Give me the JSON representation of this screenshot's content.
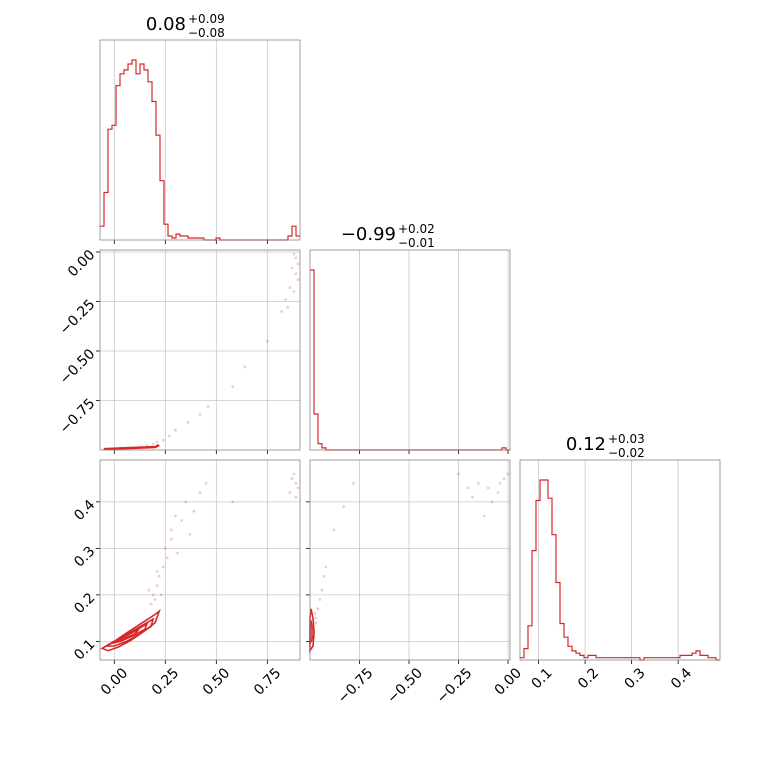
{
  "chart_data": {
    "type": "corner",
    "color": "#d62728",
    "grid": true,
    "parameters": [
      {
        "median": "0.08",
        "plus": "+0.09",
        "minus": "−0.08",
        "range": [
          -0.07,
          0.91
        ],
        "ticks": [
          0.0,
          0.25,
          0.5,
          0.75
        ],
        "tick_labels": [
          "0.00",
          "0.25",
          "0.50",
          "0.75"
        ]
      },
      {
        "median": "−0.99",
        "plus": "+0.02",
        "minus": "−0.01",
        "range": [
          -1.0,
          0.01
        ],
        "ticks": [
          -0.75,
          -0.5,
          -0.25,
          0.0
        ],
        "tick_labels": [
          "−0.75",
          "−0.50",
          "−0.25",
          "0.00"
        ]
      },
      {
        "median": "0.12",
        "plus": "+0.03",
        "minus": "−0.02",
        "range": [
          0.06,
          0.49
        ],
        "ticks": [
          0.1,
          0.2,
          0.3,
          0.4
        ],
        "tick_labels": [
          "0.1",
          "0.2",
          "0.3",
          "0.4"
        ]
      }
    ],
    "histograms": [
      {
        "param": 0,
        "bin_width": 0.0196,
        "counts": [
          0.07,
          0.24,
          0.56,
          0.58,
          0.78,
          0.84,
          0.86,
          0.89,
          0.91,
          0.84,
          0.89,
          0.86,
          0.8,
          0.7,
          0.53,
          0.3,
          0.08,
          0.02,
          0.01,
          0.03,
          0.02,
          0.02,
          0.01,
          0.01,
          0.01,
          0.01,
          0.0,
          0.0,
          0.0,
          0.01,
          0.0,
          0.0,
          0.0,
          0.0,
          0.0,
          0.0,
          0.0,
          0.0,
          0.0,
          0.0,
          0.0,
          0.0,
          0.0,
          0.0,
          0.0,
          0.0,
          0.0,
          0.02,
          0.07,
          0.02
        ]
      },
      {
        "param": 1,
        "bin_width": 0.0202,
        "counts": [
          0.85,
          0.17,
          0.03,
          0.01,
          0.0,
          0.0,
          0.0,
          0.0,
          0.0,
          0.0,
          0.0,
          0.0,
          0.0,
          0.0,
          0.0,
          0.0,
          0.0,
          0.0,
          0.0,
          0.0,
          0.0,
          0.0,
          0.0,
          0.0,
          0.0,
          0.0,
          0.0,
          0.0,
          0.0,
          0.0,
          0.0,
          0.0,
          0.0,
          0.0,
          0.0,
          0.0,
          0.0,
          0.0,
          0.0,
          0.0,
          0.0,
          0.0,
          0.0,
          0.0,
          0.0,
          0.0,
          0.0,
          0.0,
          0.01,
          0.0
        ]
      },
      {
        "param": 2,
        "bin_width": 0.0086,
        "counts": [
          0.01,
          0.05,
          0.15,
          0.48,
          0.7,
          0.79,
          0.79,
          0.71,
          0.55,
          0.34,
          0.16,
          0.1,
          0.06,
          0.04,
          0.03,
          0.02,
          0.01,
          0.02,
          0.02,
          0.01,
          0.01,
          0.01,
          0.01,
          0.01,
          0.01,
          0.01,
          0.01,
          0.01,
          0.01,
          0.01,
          0.0,
          0.01,
          0.01,
          0.01,
          0.01,
          0.01,
          0.01,
          0.01,
          0.01,
          0.01,
          0.02,
          0.02,
          0.02,
          0.03,
          0.04,
          0.02,
          0.02,
          0.01,
          0.01,
          0.0
        ]
      }
    ],
    "scatter_panels": [
      {
        "x_param": 0,
        "y_param": 1,
        "points": [
          [
            0.88,
            -0.01
          ],
          [
            0.89,
            -0.03
          ],
          [
            0.9,
            -0.06
          ],
          [
            0.87,
            -0.08
          ],
          [
            0.89,
            -0.11
          ],
          [
            0.9,
            -0.14
          ],
          [
            0.86,
            -0.18
          ],
          [
            0.88,
            -0.2
          ],
          [
            0.84,
            -0.24
          ],
          [
            0.85,
            -0.28
          ],
          [
            0.82,
            -0.3
          ],
          [
            0.75,
            -0.45
          ],
          [
            0.64,
            -0.58
          ],
          [
            0.58,
            -0.68
          ],
          [
            0.46,
            -0.78
          ],
          [
            0.42,
            -0.82
          ],
          [
            0.36,
            -0.86
          ],
          [
            0.3,
            -0.9
          ],
          [
            0.27,
            -0.93
          ],
          [
            0.24,
            -0.95
          ],
          [
            0.21,
            -0.96
          ],
          [
            0.19,
            -0.97
          ],
          [
            0.16,
            -0.98
          ],
          [
            0.13,
            -0.985
          ],
          [
            0.1,
            -0.99
          ],
          [
            0.06,
            -0.99
          ],
          [
            0.03,
            -0.99
          ],
          [
            0.0,
            -0.995
          ],
          [
            -0.03,
            -0.995
          ],
          [
            -0.05,
            -0.995
          ]
        ],
        "contours": []
      },
      {
        "x_param": 0,
        "y_param": 2,
        "points": [
          [
            0.88,
            0.46
          ],
          [
            0.89,
            0.44
          ],
          [
            0.9,
            0.43
          ],
          [
            0.87,
            0.45
          ],
          [
            0.86,
            0.42
          ],
          [
            0.89,
            0.41
          ],
          [
            0.58,
            0.4
          ],
          [
            0.42,
            0.42
          ],
          [
            0.35,
            0.4
          ],
          [
            0.3,
            0.37
          ],
          [
            0.28,
            0.34
          ],
          [
            0.25,
            0.3
          ],
          [
            0.24,
            0.26
          ],
          [
            0.22,
            0.24
          ],
          [
            0.21,
            0.22
          ],
          [
            0.23,
            0.2
          ],
          [
            0.2,
            0.19
          ],
          [
            0.18,
            0.18
          ],
          [
            0.26,
            0.28
          ],
          [
            0.33,
            0.36
          ],
          [
            0.37,
            0.33
          ],
          [
            0.31,
            0.29
          ],
          [
            0.28,
            0.32
          ],
          [
            0.21,
            0.25
          ],
          [
            0.19,
            0.2
          ],
          [
            0.17,
            0.21
          ],
          [
            0.39,
            0.38
          ],
          [
            0.45,
            0.44
          ]
        ],
        "contours": [
          [
            [
              -0.06,
              0.085
            ],
            [
              0.0,
              0.1
            ],
            [
              0.06,
              0.118
            ],
            [
              0.12,
              0.135
            ],
            [
              0.2,
              0.158
            ],
            [
              0.22,
              0.165
            ],
            [
              0.2,
              0.14
            ],
            [
              0.14,
              0.12
            ],
            [
              0.08,
              0.102
            ],
            [
              0.02,
              0.088
            ],
            [
              -0.03,
              0.08
            ]
          ],
          [
            [
              -0.04,
              0.09
            ],
            [
              0.02,
              0.105
            ],
            [
              0.08,
              0.12
            ],
            [
              0.14,
              0.135
            ],
            [
              0.19,
              0.148
            ],
            [
              0.18,
              0.132
            ],
            [
              0.12,
              0.115
            ],
            [
              0.06,
              0.1
            ],
            [
              0.0,
              0.09
            ]
          ],
          [
            [
              -0.02,
              0.095
            ],
            [
              0.04,
              0.108
            ],
            [
              0.1,
              0.122
            ],
            [
              0.16,
              0.138
            ],
            [
              0.15,
              0.126
            ],
            [
              0.09,
              0.112
            ],
            [
              0.03,
              0.1
            ]
          ],
          [
            [
              0.0,
              0.1
            ],
            [
              0.06,
              0.112
            ],
            [
              0.12,
              0.126
            ],
            [
              0.1,
              0.116
            ],
            [
              0.04,
              0.104
            ]
          ]
        ]
      },
      {
        "x_param": 1,
        "y_param": 2,
        "points": [
          [
            -0.99,
            0.1
          ],
          [
            -0.98,
            0.12
          ],
          [
            -0.97,
            0.14
          ],
          [
            -0.96,
            0.17
          ],
          [
            -0.95,
            0.19
          ],
          [
            -0.94,
            0.21
          ],
          [
            -0.93,
            0.24
          ],
          [
            -0.92,
            0.26
          ],
          [
            -0.88,
            0.34
          ],
          [
            -0.83,
            0.39
          ],
          [
            -0.78,
            0.44
          ],
          [
            -0.25,
            0.46
          ],
          [
            -0.15,
            0.44
          ],
          [
            -0.1,
            0.43
          ],
          [
            -0.05,
            0.42
          ],
          [
            -0.02,
            0.45
          ],
          [
            0.0,
            0.46
          ],
          [
            -0.2,
            0.43
          ],
          [
            -0.12,
            0.37
          ],
          [
            -0.08,
            0.4
          ],
          [
            -0.04,
            0.44
          ],
          [
            -0.18,
            0.41
          ],
          [
            -0.97,
            0.15
          ],
          [
            -0.98,
            0.11
          ],
          [
            -0.99,
            0.13
          ],
          [
            -0.985,
            0.09
          ],
          [
            -0.975,
            0.16
          ]
        ],
        "contours": [
          [
            [
              -1.0,
              0.08
            ],
            [
              -0.985,
              0.09
            ],
            [
              -0.98,
              0.12
            ],
            [
              -0.985,
              0.15
            ],
            [
              -0.995,
              0.17
            ],
            [
              -1.0,
              0.15
            ]
          ],
          [
            [
              -1.0,
              0.095
            ],
            [
              -0.99,
              0.105
            ],
            [
              -0.99,
              0.13
            ],
            [
              -0.995,
              0.145
            ],
            [
              -1.0,
              0.13
            ]
          ]
        ]
      }
    ]
  }
}
